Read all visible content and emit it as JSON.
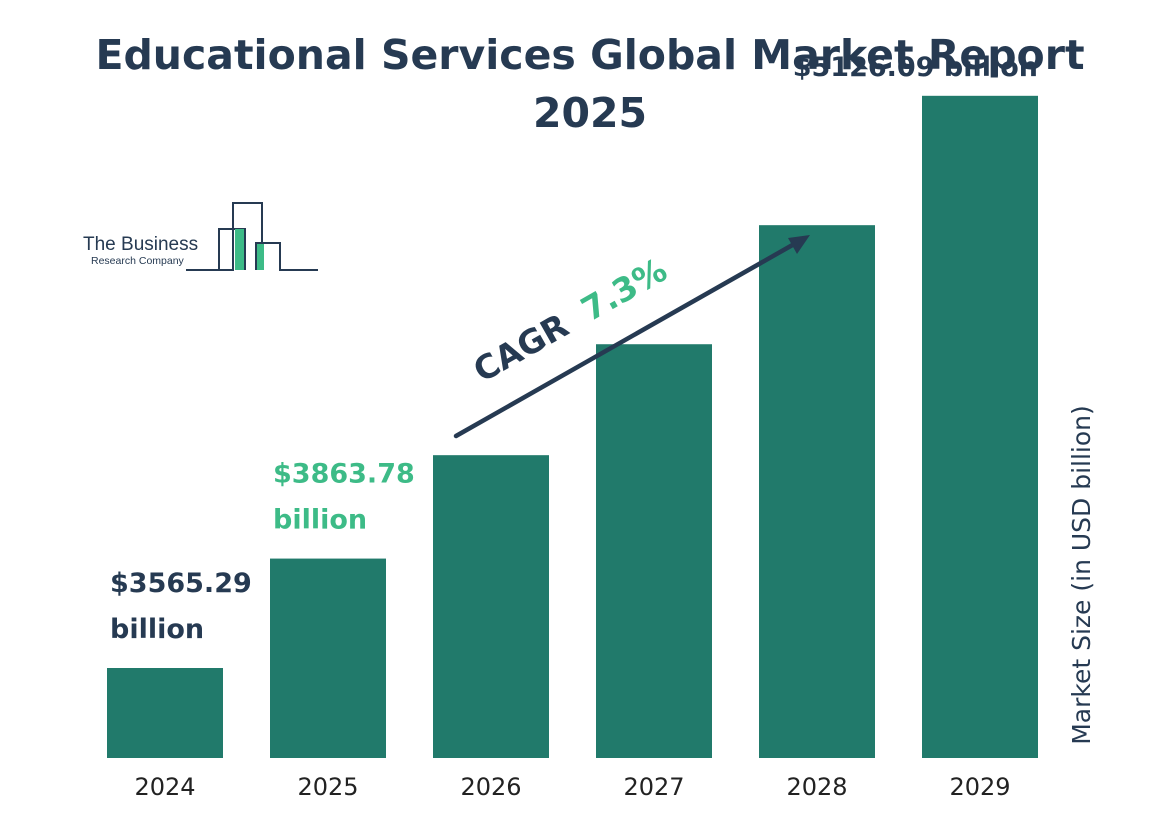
{
  "title_line1": "Educational Services Global Market Report",
  "title_line2": "2025",
  "logo": {
    "line1": "The Business",
    "line2": "Research Company"
  },
  "chart_data": {
    "type": "bar",
    "categories": [
      "2024",
      "2025",
      "2026",
      "2027",
      "2028",
      "2029"
    ],
    "values": [
      3565.29,
      3863.78,
      4145.83,
      4448.48,
      4773.22,
      5126.09
    ],
    "ylabel": "Market Size (in USD billion)",
    "data_labels": [
      {
        "category": "2024",
        "lines": [
          "$3565.29",
          "billion"
        ],
        "color": "#263a52"
      },
      {
        "category": "2025",
        "lines": [
          "$3863.78",
          "billion"
        ],
        "color": "#3dbb87"
      },
      {
        "category": "2029",
        "lines": [
          "$5126.09 billion"
        ],
        "color": "#263a52"
      }
    ],
    "cagr": {
      "label": "CAGR",
      "value": "7.3%"
    },
    "colors": {
      "bar": "#217a6b",
      "text": "#263a52",
      "accent": "#3dbb87",
      "tick": "#222222"
    },
    "grid": false
  }
}
